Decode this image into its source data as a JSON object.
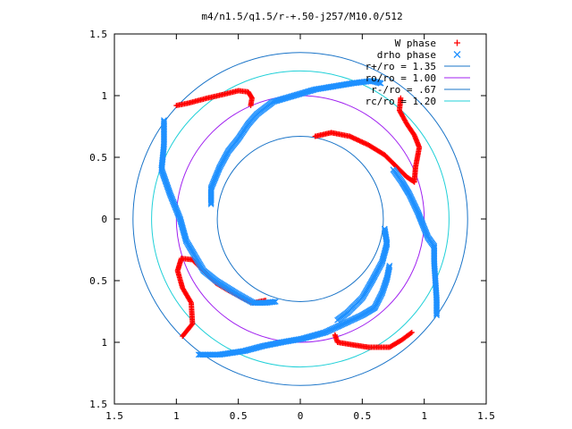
{
  "chart_data": {
    "type": "scatter",
    "title": "m4/n1.5/q1.5/r-+.50-j257/M10.0/512",
    "xlabel": "",
    "ylabel": "",
    "xlim": [
      -1.5,
      1.5
    ],
    "ylim": [
      -1.5,
      1.5
    ],
    "x_ticks": [
      -1.5,
      -1,
      -0.5,
      0,
      0.5,
      1,
      1.5
    ],
    "y_ticks": [
      -1.5,
      -1,
      -0.5,
      0,
      0.5,
      1,
      1.5
    ],
    "x_tick_labels": [
      "1.5",
      "1",
      "0.5",
      "0",
      "0.5",
      "1",
      "1.5"
    ],
    "y_tick_labels": [
      "1.5",
      "1",
      "0.5",
      "0",
      "0.5",
      "1",
      "1.5"
    ],
    "grid": false,
    "legend_position": "top-right",
    "colors": {
      "w_phase": "#ff0000",
      "drho_phase": "#1e90ff",
      "r_plus": "#1a74c8",
      "ro": "#a020f0",
      "r_minus": "#1a74c8",
      "rc": "#20d0d8"
    },
    "series": [
      {
        "name": "W phase",
        "marker": "plus",
        "color": "#ff0000",
        "arms": [
          [
            [
              -1.0,
              0.92
            ],
            [
              -0.9,
              0.94
            ],
            [
              -0.75,
              0.98
            ],
            [
              -0.62,
              1.01
            ],
            [
              -0.5,
              1.04
            ],
            [
              -0.42,
              1.03
            ],
            [
              -0.39,
              0.98
            ],
            [
              -0.4,
              0.92
            ]
          ],
          [
            [
              0.9,
              -0.92
            ],
            [
              0.82,
              -0.98
            ],
            [
              0.72,
              -1.04
            ],
            [
              0.55,
              -1.04
            ],
            [
              0.42,
              -1.02
            ],
            [
              0.3,
              -1.0
            ],
            [
              0.28,
              -0.94
            ]
          ],
          [
            [
              0.92,
              0.3
            ],
            [
              0.93,
              0.42
            ],
            [
              0.96,
              0.58
            ],
            [
              0.92,
              0.68
            ],
            [
              0.86,
              0.77
            ],
            [
              0.8,
              0.88
            ],
            [
              0.81,
              0.98
            ]
          ],
          [
            [
              -0.95,
              -0.95
            ],
            [
              -0.87,
              -0.85
            ],
            [
              -0.88,
              -0.68
            ],
            [
              -0.95,
              -0.56
            ],
            [
              -0.99,
              -0.42
            ],
            [
              -0.96,
              -0.32
            ],
            [
              -0.87,
              -0.33
            ]
          ],
          [
            [
              0.12,
              0.67
            ],
            [
              0.25,
              0.7
            ],
            [
              0.4,
              0.67
            ],
            [
              0.55,
              0.6
            ],
            [
              0.68,
              0.52
            ],
            [
              0.78,
              0.42
            ],
            [
              0.86,
              0.34
            ],
            [
              0.92,
              0.3
            ]
          ],
          [
            [
              -0.87,
              -0.33
            ],
            [
              -0.78,
              -0.42
            ],
            [
              -0.68,
              -0.52
            ],
            [
              -0.58,
              -0.58
            ],
            [
              -0.47,
              -0.64
            ],
            [
              -0.38,
              -0.68
            ],
            [
              -0.28,
              -0.66
            ]
          ]
        ]
      },
      {
        "name": "drho phase",
        "marker": "cross",
        "color": "#1e90ff",
        "arms": [
          [
            [
              -1.1,
              0.8
            ],
            [
              -1.1,
              0.6
            ],
            [
              -1.12,
              0.4
            ],
            [
              -1.05,
              0.2
            ],
            [
              -0.97,
              0.0
            ],
            [
              -0.92,
              -0.18
            ],
            [
              -0.85,
              -0.3
            ],
            [
              -0.78,
              -0.42
            ],
            [
              -0.68,
              -0.5
            ],
            [
              -0.52,
              -0.6
            ],
            [
              -0.38,
              -0.68
            ],
            [
              -0.28,
              -0.68
            ],
            [
              -0.2,
              -0.67
            ]
          ],
          [
            [
              0.68,
              -0.08
            ],
            [
              0.7,
              -0.2
            ],
            [
              0.66,
              -0.35
            ],
            [
              0.58,
              -0.5
            ],
            [
              0.5,
              -0.64
            ],
            [
              0.38,
              -0.76
            ],
            [
              0.3,
              -0.82
            ]
          ],
          [
            [
              -0.72,
              0.12
            ],
            [
              -0.72,
              0.25
            ],
            [
              -0.65,
              0.42
            ],
            [
              -0.58,
              0.55
            ],
            [
              -0.5,
              0.65
            ],
            [
              -0.42,
              0.77
            ],
            [
              -0.35,
              0.85
            ],
            [
              -0.22,
              0.95
            ],
            [
              -0.05,
              1.0
            ],
            [
              0.12,
              1.05
            ],
            [
              0.3,
              1.08
            ],
            [
              0.42,
              1.1
            ],
            [
              0.58,
              1.12
            ],
            [
              0.65,
              1.1
            ]
          ],
          [
            [
              -0.82,
              -1.1
            ],
            [
              -0.65,
              -1.1
            ],
            [
              -0.45,
              -1.07
            ],
            [
              -0.3,
              -1.03
            ],
            [
              -0.15,
              -1.0
            ],
            [
              0.02,
              -0.97
            ],
            [
              0.2,
              -0.92
            ],
            [
              0.35,
              -0.85
            ],
            [
              0.5,
              -0.78
            ],
            [
              0.6,
              -0.72
            ],
            [
              0.66,
              -0.6
            ],
            [
              0.7,
              -0.48
            ],
            [
              0.72,
              -0.38
            ]
          ],
          [
            [
              0.75,
              0.4
            ],
            [
              0.82,
              0.3
            ],
            [
              0.88,
              0.2
            ],
            [
              0.95,
              0.05
            ],
            [
              0.99,
              -0.05
            ],
            [
              1.03,
              -0.15
            ],
            [
              1.08,
              -0.22
            ],
            [
              1.08,
              -0.35
            ],
            [
              1.09,
              -0.5
            ],
            [
              1.1,
              -0.65
            ],
            [
              1.1,
              -0.78
            ]
          ]
        ]
      }
    ],
    "circles": [
      {
        "name": "r+/ro = 1.35",
        "r": 1.35,
        "color": "#1a74c8"
      },
      {
        "name": "ro/ro = 1.00",
        "r": 1.0,
        "color": "#a020f0"
      },
      {
        "name": "r-/ro = .67",
        "r": 0.67,
        "color": "#1a74c8"
      },
      {
        "name": "rc/ro = 1.20",
        "r": 1.2,
        "color": "#20d0d8"
      }
    ]
  }
}
